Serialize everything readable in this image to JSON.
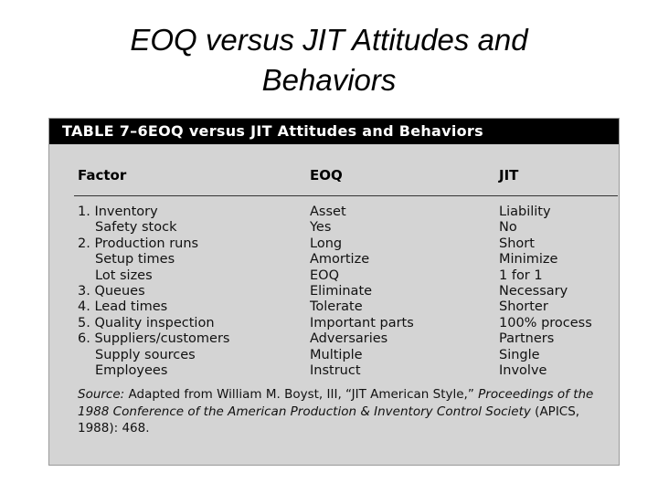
{
  "slide": {
    "title_line1": "EOQ versus JIT Attitudes and",
    "title_line2": "Behaviors"
  },
  "table": {
    "caption": "TABLE 7–6EOQ versus JIT Attitudes and Behaviors",
    "headers": {
      "factor": "Factor",
      "eoq": "EOQ",
      "jit": "JIT"
    },
    "rows": [
      {
        "factor": "1. Inventory",
        "indent": false,
        "eoq": "Asset",
        "jit": "Liability"
      },
      {
        "factor": "Safety stock",
        "indent": true,
        "eoq": "Yes",
        "jit": "No"
      },
      {
        "factor": "2. Production runs",
        "indent": false,
        "eoq": "Long",
        "jit": "Short"
      },
      {
        "factor": "Setup times",
        "indent": true,
        "eoq": "Amortize",
        "jit": "Minimize"
      },
      {
        "factor": "Lot sizes",
        "indent": true,
        "eoq": "EOQ",
        "jit": "1 for 1"
      },
      {
        "factor": "3. Queues",
        "indent": false,
        "eoq": "Eliminate",
        "jit": "Necessary"
      },
      {
        "factor": "4. Lead times",
        "indent": false,
        "eoq": "Tolerate",
        "jit": "Shorter"
      },
      {
        "factor": "5. Quality inspection",
        "indent": false,
        "eoq": "Important parts",
        "jit": "100% process"
      },
      {
        "factor": "6. Suppliers/customers",
        "indent": false,
        "eoq": "Adversaries",
        "jit": "Partners"
      },
      {
        "factor": "Supply sources",
        "indent": true,
        "eoq": "Multiple",
        "jit": "Single"
      },
      {
        "factor": "Employees",
        "indent": true,
        "eoq": "Instruct",
        "jit": "Involve"
      }
    ],
    "source": {
      "label": "Source:",
      "text1": " Adapted from William M. Boyst, III, “JIT American Style,” ",
      "italic": "Proceedings of the 1988 Conference of the American Production & Inventory Control Society",
      "text2": " (APICS, 1988): 468."
    }
  }
}
